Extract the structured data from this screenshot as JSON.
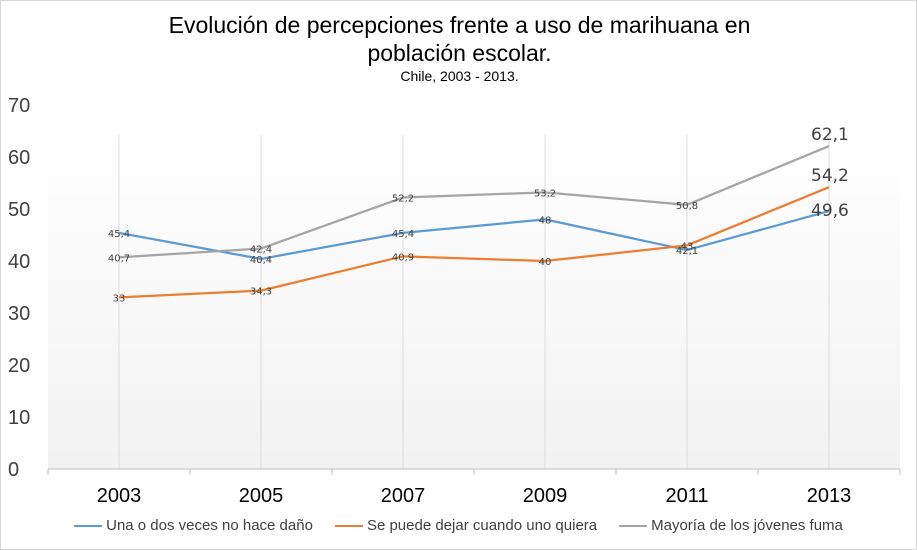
{
  "chart_data": {
    "type": "line",
    "title_line1": "Evolución de percepciones frente a uso de marihuana en",
    "title_line2": "población escolar.",
    "subtitle": "Chile, 2003 - 2013.",
    "categories": [
      "2003",
      "2005",
      "2007",
      "2009",
      "2011",
      "2013"
    ],
    "ylim": [
      0,
      70
    ],
    "yticks": [
      0,
      10,
      20,
      30,
      40,
      50,
      60,
      70
    ],
    "grid": "vertical",
    "legend_position": "bottom",
    "series": [
      {
        "name": "Una o dos veces no hace daño",
        "color": "#5b9bd5",
        "values": [
          45.4,
          40.4,
          45.4,
          48,
          42.1,
          49.6
        ],
        "labels": [
          "45,4",
          "40,4",
          "45,4",
          "48",
          "42,1",
          "49,6"
        ]
      },
      {
        "name": "Se puede dejar cuando uno quiera",
        "color": "#ed7d31",
        "values": [
          33,
          34.3,
          40.9,
          40,
          43,
          54.2
        ],
        "labels": [
          "33",
          "34,3",
          "40,9",
          "40",
          "43",
          "54,2"
        ]
      },
      {
        "name": "Mayoría de los jóvenes fuma",
        "color": "#a5a5a5",
        "values": [
          40.7,
          42.4,
          52.2,
          53.2,
          50.8,
          62.1
        ],
        "labels": [
          "40,7",
          "42,4",
          "52,2",
          "53,2",
          "50,8",
          "62,1"
        ]
      }
    ]
  }
}
